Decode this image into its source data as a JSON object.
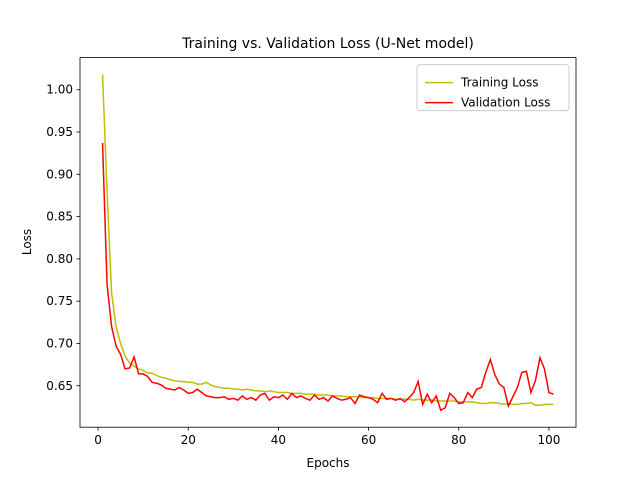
{
  "chart_data": {
    "type": "line",
    "title": "Training vs. Validation Loss (U-Net model)",
    "x_label": "Epochs",
    "y_label": "Loss",
    "x": [
      1,
      2,
      3,
      4,
      5,
      6,
      7,
      8,
      9,
      10,
      11,
      12,
      13,
      14,
      15,
      16,
      17,
      18,
      19,
      20,
      21,
      22,
      23,
      24,
      25,
      26,
      27,
      28,
      29,
      30,
      31,
      32,
      33,
      34,
      35,
      36,
      37,
      38,
      39,
      40,
      41,
      42,
      43,
      44,
      45,
      46,
      47,
      48,
      49,
      50,
      51,
      52,
      53,
      54,
      55,
      56,
      57,
      58,
      59,
      60,
      61,
      62,
      63,
      64,
      65,
      66,
      67,
      68,
      69,
      70,
      71,
      72,
      73,
      74,
      75,
      76,
      77,
      78,
      79,
      80,
      81,
      82,
      83,
      84,
      85,
      86,
      87,
      88,
      89,
      90,
      91,
      92,
      93,
      94,
      95,
      96,
      97,
      98,
      99,
      100,
      101
    ],
    "series": [
      {
        "name": "Training Loss",
        "color": "#bfbf00",
        "values": [
          1.018,
          0.88,
          0.76,
          0.72,
          0.7,
          0.685,
          0.677,
          0.673,
          0.67,
          0.668,
          0.665,
          0.665,
          0.662,
          0.66,
          0.659,
          0.657,
          0.656,
          0.655,
          0.655,
          0.654,
          0.654,
          0.652,
          0.652,
          0.654,
          0.651,
          0.649,
          0.648,
          0.647,
          0.647,
          0.646,
          0.646,
          0.645,
          0.646,
          0.645,
          0.644,
          0.644,
          0.643,
          0.644,
          0.643,
          0.642,
          0.642,
          0.642,
          0.641,
          0.641,
          0.641,
          0.64,
          0.64,
          0.64,
          0.639,
          0.639,
          0.639,
          0.638,
          0.638,
          0.638,
          0.637,
          0.637,
          0.637,
          0.637,
          0.636,
          0.636,
          0.636,
          0.635,
          0.635,
          0.635,
          0.635,
          0.634,
          0.634,
          0.634,
          0.634,
          0.633,
          0.634,
          0.633,
          0.633,
          0.633,
          0.632,
          0.632,
          0.632,
          0.632,
          0.632,
          0.631,
          0.631,
          0.631,
          0.631,
          0.63,
          0.629,
          0.629,
          0.63,
          0.63,
          0.629,
          0.628,
          0.629,
          0.628,
          0.628,
          0.629,
          0.629,
          0.63,
          0.627,
          0.627,
          0.628,
          0.628,
          0.628
        ]
      },
      {
        "name": "Validation Loss",
        "color": "#ff0000",
        "values": [
          0.937,
          0.77,
          0.72,
          0.697,
          0.687,
          0.67,
          0.671,
          0.684,
          0.664,
          0.664,
          0.661,
          0.654,
          0.653,
          0.651,
          0.647,
          0.646,
          0.645,
          0.648,
          0.645,
          0.641,
          0.642,
          0.646,
          0.642,
          0.638,
          0.637,
          0.636,
          0.636,
          0.637,
          0.634,
          0.635,
          0.633,
          0.638,
          0.634,
          0.636,
          0.633,
          0.639,
          0.641,
          0.633,
          0.637,
          0.636,
          0.639,
          0.634,
          0.641,
          0.636,
          0.638,
          0.635,
          0.633,
          0.639,
          0.634,
          0.636,
          0.632,
          0.638,
          0.635,
          0.633,
          0.634,
          0.636,
          0.629,
          0.639,
          0.637,
          0.636,
          0.634,
          0.63,
          0.641,
          0.634,
          0.635,
          0.633,
          0.635,
          0.631,
          0.636,
          0.642,
          0.655,
          0.628,
          0.64,
          0.63,
          0.638,
          0.621,
          0.624,
          0.641,
          0.636,
          0.629,
          0.63,
          0.642,
          0.636,
          0.646,
          0.648,
          0.666,
          0.681,
          0.663,
          0.652,
          0.648,
          0.626,
          0.637,
          0.648,
          0.666,
          0.667,
          0.642,
          0.656,
          0.683,
          0.67,
          0.642,
          0.64
        ]
      }
    ],
    "xlim": [
      -4,
      106
    ],
    "ylim": [
      0.601,
      1.038
    ],
    "xticks": [
      0,
      20,
      40,
      60,
      80,
      100
    ],
    "yticks": [
      0.65,
      {
        "value": 0.7,
        "label": "0.70"
      },
      0.75,
      {
        "value": 0.8,
        "label": "0.80"
      },
      0.85,
      {
        "value": 0.9,
        "label": "0.90"
      },
      0.95,
      {
        "value": 1.0,
        "label": "1.00"
      }
    ],
    "legend": "upper right"
  }
}
